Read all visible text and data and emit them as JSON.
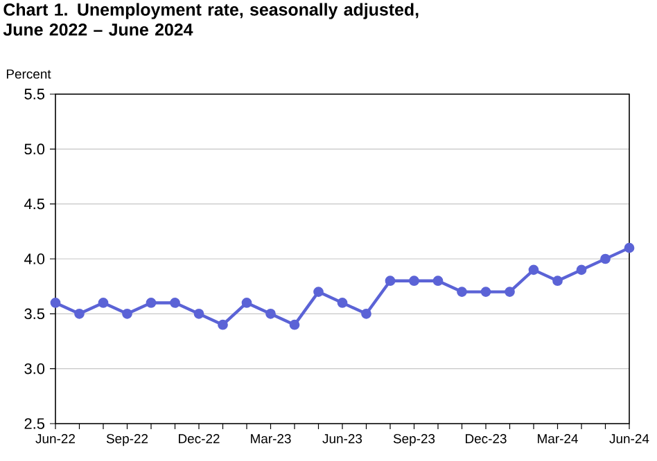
{
  "chart_data": {
    "type": "line",
    "title": "Chart 1. Unemployment rate, seasonally adjusted, June 2022 – June 2024",
    "ylabel": "Percent",
    "categories": [
      "Jun-22",
      null,
      null,
      "Sep-22",
      null,
      null,
      "Dec-22",
      null,
      null,
      "Mar-23",
      null,
      null,
      "Jun-23",
      null,
      null,
      "Sep-23",
      null,
      null,
      "Dec-23",
      null,
      null,
      "Mar-24",
      null,
      null,
      "Jun-24"
    ],
    "series": [
      {
        "color": "#5b63d6",
        "values": [
          3.6,
          3.5,
          3.6,
          3.5,
          3.6,
          3.6,
          3.5,
          3.4,
          3.6,
          3.5,
          3.4,
          3.7,
          3.6,
          3.5,
          3.8,
          3.8,
          3.8,
          3.7,
          3.7,
          3.7,
          3.9,
          3.8,
          3.9,
          4.0,
          4.1
        ]
      }
    ],
    "ylim": [
      2.5,
      5.5
    ],
    "yticks": [
      2.5,
      {
        "value": 3.0,
        "label": "3.0"
      },
      3.5,
      {
        "value": 4.0,
        "label": "4.0"
      },
      4.5,
      {
        "value": 5.0,
        "label": "5.0"
      },
      5.5
    ],
    "grid": "y",
    "marker": "circle",
    "line_style": "solid"
  }
}
